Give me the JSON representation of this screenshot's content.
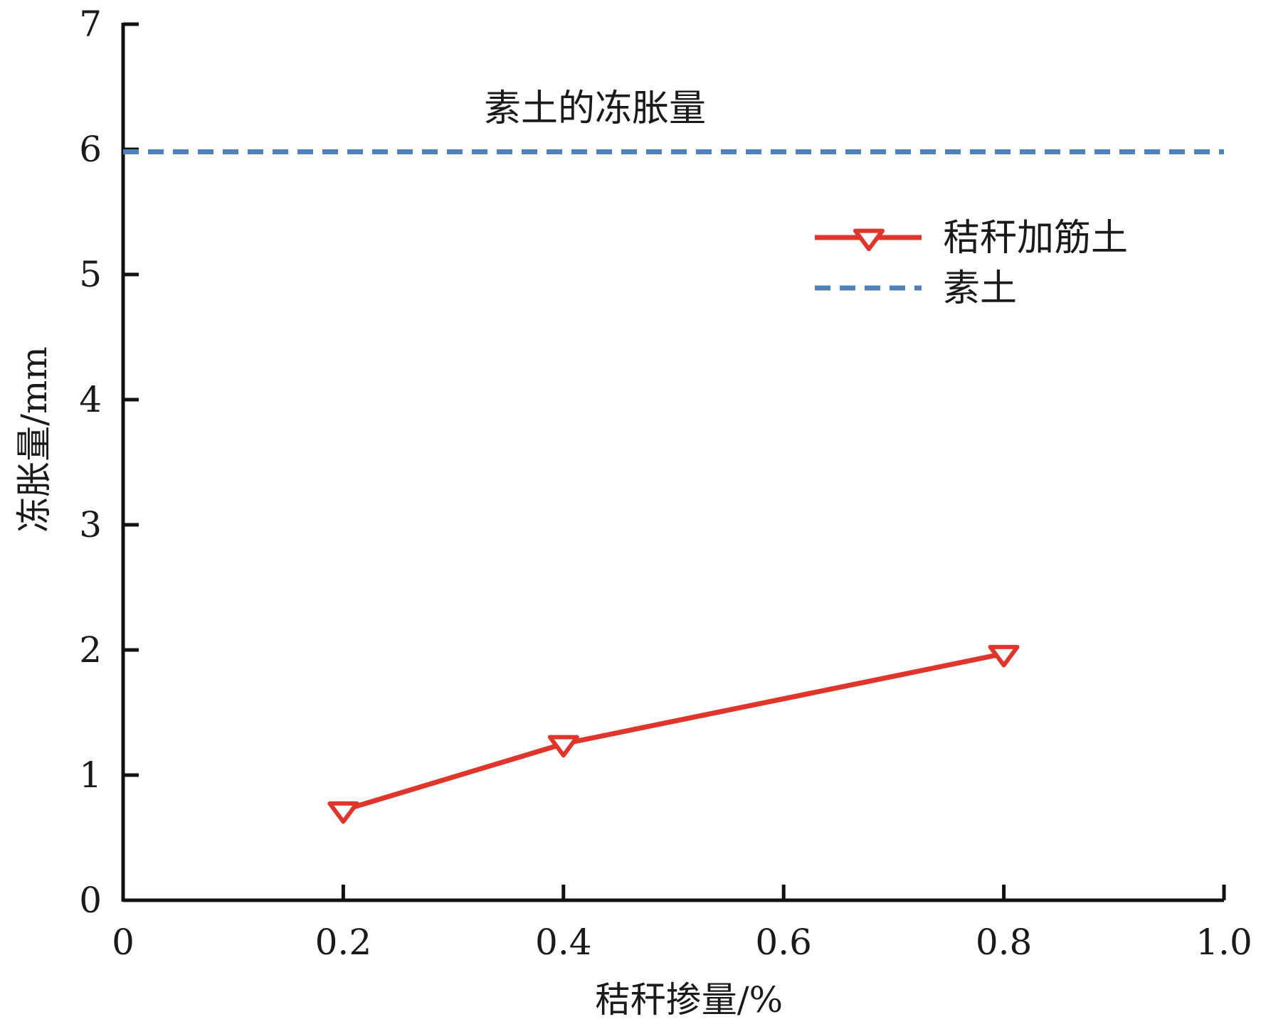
{
  "chart_data": {
    "type": "line",
    "title": "",
    "xlabel": "秸秆掺量/%",
    "ylabel": "冻胀量/mm",
    "xlim": [
      0,
      1.0
    ],
    "ylim": [
      0,
      7
    ],
    "x_ticks": [
      0,
      0.2,
      0.4,
      0.6,
      0.8,
      1.0
    ],
    "x_tick_labels": [
      "0",
      "0.2",
      "0.4",
      "0.6",
      "0.8",
      "1.0"
    ],
    "y_ticks": [
      0,
      1,
      2,
      3,
      4,
      5,
      6,
      7
    ],
    "y_tick_labels": [
      "0",
      "1",
      "2",
      "3",
      "4",
      "5",
      "6",
      "7"
    ],
    "grid": false,
    "legend_position": "top-right",
    "series": [
      {
        "name": "秸秆加筋土",
        "style": "solid-line-triangle-down-markers",
        "color": "#e0352b",
        "x": [
          0.2,
          0.4,
          0.8
        ],
        "y": [
          0.72,
          1.25,
          1.97
        ]
      },
      {
        "name": "素土",
        "style": "dashed-horizontal-line",
        "color": "#4f81bd",
        "x": [
          0,
          1.0
        ],
        "y": [
          5.98,
          5.98
        ]
      }
    ],
    "annotations": [
      {
        "text": "素土的冻胀量"
      }
    ]
  }
}
